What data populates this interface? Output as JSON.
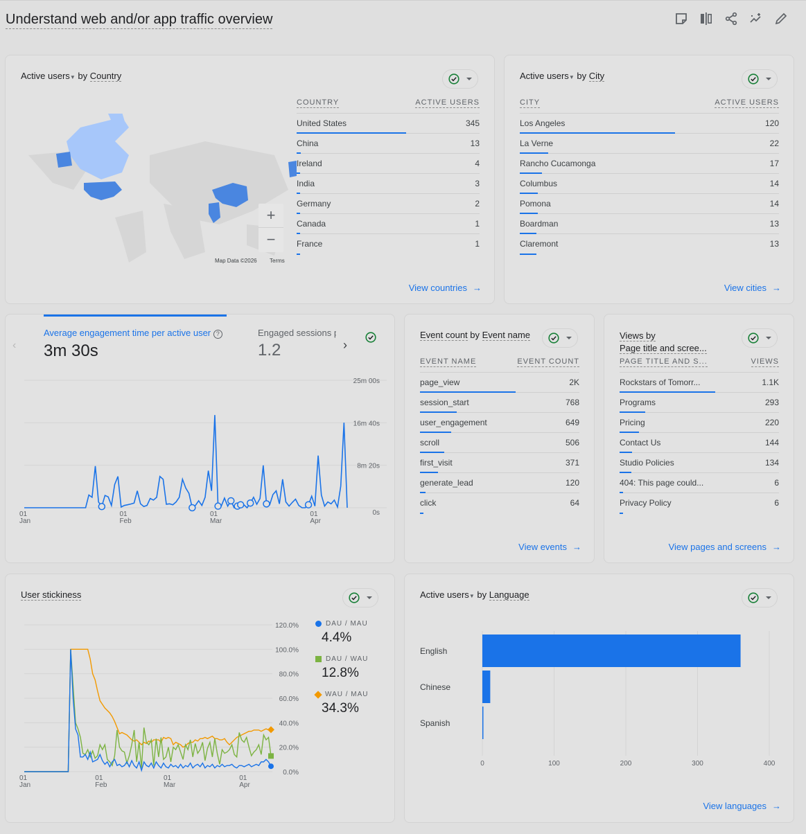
{
  "header": {
    "title": "Understand web and/or app traffic overview",
    "icons": [
      "note-icon",
      "compare-icon",
      "share-icon",
      "insights-icon",
      "edit-icon"
    ]
  },
  "colors": {
    "accent": "#1a73e8",
    "green": "#7cb342",
    "orange": "#f29900",
    "check": "#188038"
  },
  "country_card": {
    "metric": "Active users",
    "by": "by",
    "dimension": "Country",
    "col1": "COUNTRY",
    "col2": "ACTIVE USERS",
    "rows": [
      {
        "label": "United States",
        "value": "345",
        "n": 345
      },
      {
        "label": "China",
        "value": "13",
        "n": 13
      },
      {
        "label": "Ireland",
        "value": "4",
        "n": 4
      },
      {
        "label": "India",
        "value": "3",
        "n": 3
      },
      {
        "label": "Germany",
        "value": "2",
        "n": 2
      },
      {
        "label": "Canada",
        "value": "1",
        "n": 1
      },
      {
        "label": "France",
        "value": "1",
        "n": 1
      }
    ],
    "map_credit": "Map Data ©2026",
    "map_terms": "Terms",
    "zoom_in": "+",
    "zoom_out": "−",
    "link": "View countries"
  },
  "city_card": {
    "metric": "Active users",
    "by": "by",
    "dimension": "City",
    "col1": "CITY",
    "col2": "ACTIVE USERS",
    "rows": [
      {
        "label": "Los Angeles",
        "value": "120",
        "n": 120
      },
      {
        "label": "La Verne",
        "value": "22",
        "n": 22
      },
      {
        "label": "Rancho Cucamonga",
        "value": "17",
        "n": 17
      },
      {
        "label": "Columbus",
        "value": "14",
        "n": 14
      },
      {
        "label": "Pomona",
        "value": "14",
        "n": 14
      },
      {
        "label": "Boardman",
        "value": "13",
        "n": 13
      },
      {
        "label": "Claremont",
        "value": "13",
        "n": 13
      }
    ],
    "link": "View cities"
  },
  "engagement_card": {
    "tab1_label": "Average engagement time per active user",
    "tab1_value": "3m 30s",
    "tab2_label": "Engaged sessions p",
    "tab2_value": "1.2"
  },
  "event_card": {
    "title1": "Event count",
    "by": "by",
    "dimension": "Event name",
    "col1": "EVENT NAME",
    "col2": "EVENT COUNT",
    "rows": [
      {
        "label": "page_view",
        "value": "2K",
        "n": 2000
      },
      {
        "label": "session_start",
        "value": "768",
        "n": 768
      },
      {
        "label": "user_engagement",
        "value": "649",
        "n": 649
      },
      {
        "label": "scroll",
        "value": "506",
        "n": 506
      },
      {
        "label": "first_visit",
        "value": "371",
        "n": 371
      },
      {
        "label": "generate_lead",
        "value": "120",
        "n": 120
      },
      {
        "label": "click",
        "value": "64",
        "n": 64
      }
    ],
    "link": "View events"
  },
  "views_card": {
    "title1": "Views by",
    "dimension": "Page title and scree...",
    "col1": "PAGE TITLE AND S...",
    "col2": "VIEWS",
    "rows": [
      {
        "label": "Rockstars of Tomorr...",
        "value": "1.1K",
        "n": 1100
      },
      {
        "label": "Programs",
        "value": "293",
        "n": 293
      },
      {
        "label": "Pricing",
        "value": "220",
        "n": 220
      },
      {
        "label": "Contact Us",
        "value": "144",
        "n": 144
      },
      {
        "label": "Studio Policies",
        "value": "134",
        "n": 134
      },
      {
        "label": "404: This page could...",
        "value": "6",
        "n": 6
      },
      {
        "label": "Privacy Policy",
        "value": "6",
        "n": 6
      }
    ],
    "link": "View pages and screens"
  },
  "stickiness_card": {
    "title": "User stickiness",
    "legend": [
      {
        "name": "DAU / MAU",
        "value": "4.4%"
      },
      {
        "name": "DAU / WAU",
        "value": "12.8%"
      },
      {
        "name": "WAU / MAU",
        "value": "34.3%"
      }
    ]
  },
  "language_card": {
    "metric": "Active users",
    "by": "by",
    "dimension": "Language",
    "link": "View languages"
  },
  "chart_data": [
    {
      "type": "line",
      "name": "engagement",
      "ylabel": "",
      "x_range": [
        "Jan 01",
        "Apr 11"
      ],
      "x_ticks": [
        {
          "day": "01",
          "month": "Jan",
          "i": 0
        },
        {
          "day": "01",
          "month": "Feb",
          "i": 31
        },
        {
          "day": "01",
          "month": "Mar",
          "i": 59
        },
        {
          "day": "01",
          "month": "Apr",
          "i": 90
        }
      ],
      "y_ticks": [
        {
          "label": "0s",
          "v": 0
        },
        {
          "label": "8m 20s",
          "v": 500
        },
        {
          "label": "16m 40s",
          "v": 1000
        },
        {
          "label": "25m 00s",
          "v": 1500
        }
      ],
      "ylim": [
        0,
        1500
      ],
      "unit": "seconds",
      "values": [
        0,
        0,
        0,
        0,
        0,
        0,
        0,
        0,
        0,
        0,
        0,
        0,
        0,
        0,
        0,
        0,
        0,
        0,
        0,
        0,
        150,
        123,
        491,
        68,
        14,
        145,
        128,
        27,
        273,
        368,
        8,
        27,
        35,
        44,
        55,
        199,
        46,
        14,
        27,
        109,
        90,
        123,
        368,
        335,
        41,
        46,
        35,
        68,
        123,
        335,
        232,
        169,
        0,
        27,
        82,
        27,
        123,
        436,
        199,
        1091,
        19,
        19,
        114,
        19,
        82,
        0,
        19,
        35,
        35,
        0,
        55,
        123,
        41,
        109,
        499,
        46,
        35,
        155,
        199,
        46,
        335,
        68,
        19,
        63,
        101,
        27,
        0,
        0,
        35,
        136,
        19,
        614,
        150,
        19,
        68,
        46,
        90,
        8,
        254,
        1001,
        0
      ],
      "anomaly_indices": [
        24,
        52,
        60,
        64,
        66,
        67,
        70,
        75,
        88
      ]
    },
    {
      "type": "line",
      "name": "stickiness",
      "x_range": [
        "Jan 01",
        "Apr 12"
      ],
      "ylim": [
        0,
        120
      ],
      "x_ticks": [
        {
          "day": "01",
          "month": "Jan",
          "i": 0
        },
        {
          "day": "01",
          "month": "Feb",
          "i": 31
        },
        {
          "day": "01",
          "month": "Mar",
          "i": 59
        },
        {
          "day": "01",
          "month": "Apr",
          "i": 90
        }
      ],
      "y_ticks": [
        {
          "label": "0.0%",
          "v": 0
        },
        {
          "label": "20.0%",
          "v": 20
        },
        {
          "label": "40.0%",
          "v": 40
        },
        {
          "label": "60.0%",
          "v": 60
        },
        {
          "label": "80.0%",
          "v": 80
        },
        {
          "label": "100.0%",
          "v": 100
        },
        {
          "label": "120.0%",
          "v": 120
        }
      ],
      "series": [
        {
          "name": "WAU / MAU",
          "color": "#f29900",
          "marker": "diamond",
          "values": [
            0,
            0,
            0,
            0,
            0,
            0,
            0,
            0,
            0,
            0,
            0,
            0,
            0,
            0,
            0,
            0,
            0,
            0,
            0,
            100,
            100,
            100,
            100,
            100,
            100,
            100,
            100,
            92,
            80,
            75,
            66,
            58,
            55,
            52,
            50,
            48,
            45,
            41,
            36,
            31,
            32,
            31,
            30,
            28,
            26,
            25,
            26,
            24,
            22,
            24,
            23,
            25,
            24,
            26,
            26,
            26,
            24,
            28,
            27,
            28,
            27,
            22,
            24,
            23,
            22,
            20,
            21,
            23,
            24,
            24,
            26,
            25,
            27,
            27,
            28,
            27,
            28,
            29,
            27,
            27,
            26,
            26,
            27,
            24,
            22,
            24,
            26,
            28,
            29,
            30,
            31,
            32,
            33,
            33,
            34,
            34,
            34,
            33,
            34,
            35,
            34,
            34.3
          ]
        },
        {
          "name": "DAU / WAU",
          "color": "#7cb342",
          "marker": "square",
          "values": [
            0,
            0,
            0,
            0,
            0,
            0,
            0,
            0,
            0,
            0,
            0,
            0,
            0,
            0,
            0,
            0,
            0,
            0,
            0,
            100,
            70,
            40,
            35,
            28,
            15,
            14,
            18,
            12,
            17,
            11,
            13,
            22,
            18,
            22,
            10,
            8,
            5,
            13,
            34,
            20,
            17,
            16,
            7,
            13,
            22,
            34,
            8,
            24,
            3,
            36,
            24,
            22,
            26,
            5,
            27,
            12,
            28,
            10,
            12,
            20,
            8,
            20,
            18,
            22,
            16,
            10,
            22,
            18,
            26,
            12,
            23,
            15,
            18,
            24,
            9,
            19,
            24,
            12,
            27,
            15,
            6,
            18,
            15,
            16,
            18,
            22,
            14,
            12,
            32,
            26,
            24,
            28,
            20,
            13,
            16,
            18,
            22,
            14,
            30,
            26,
            28,
            12.8
          ]
        },
        {
          "name": "DAU / MAU",
          "color": "#1a73e8",
          "marker": "circle",
          "values": [
            0,
            0,
            0,
            0,
            0,
            0,
            0,
            0,
            0,
            0,
            0,
            0,
            0,
            0,
            0,
            0,
            0,
            0,
            0,
            100,
            60,
            35,
            30,
            12,
            12,
            14,
            10,
            16,
            8,
            9,
            10,
            14,
            9,
            6,
            8,
            4,
            8,
            10,
            5,
            6,
            4,
            5,
            8,
            4,
            9,
            5,
            3,
            8,
            1,
            8,
            5,
            4,
            7,
            3,
            8,
            5,
            3,
            7,
            4,
            3,
            6,
            4,
            5,
            3,
            6,
            3,
            5,
            4,
            7,
            3,
            5,
            6,
            4,
            7,
            3,
            5,
            4,
            6,
            3,
            5,
            4,
            6,
            4,
            5,
            5,
            6,
            4,
            3,
            5,
            5,
            4,
            5,
            6,
            4,
            5,
            6,
            5,
            8,
            8,
            10,
            8,
            4.4
          ]
        }
      ]
    },
    {
      "type": "bar",
      "name": "language",
      "orientation": "horizontal",
      "categories": [
        "English",
        "Chinese",
        "Spanish"
      ],
      "values": [
        360,
        11,
        1
      ],
      "xlim": [
        0,
        400
      ],
      "x_ticks": [
        "0",
        "100",
        "200",
        "300",
        "400"
      ]
    }
  ]
}
